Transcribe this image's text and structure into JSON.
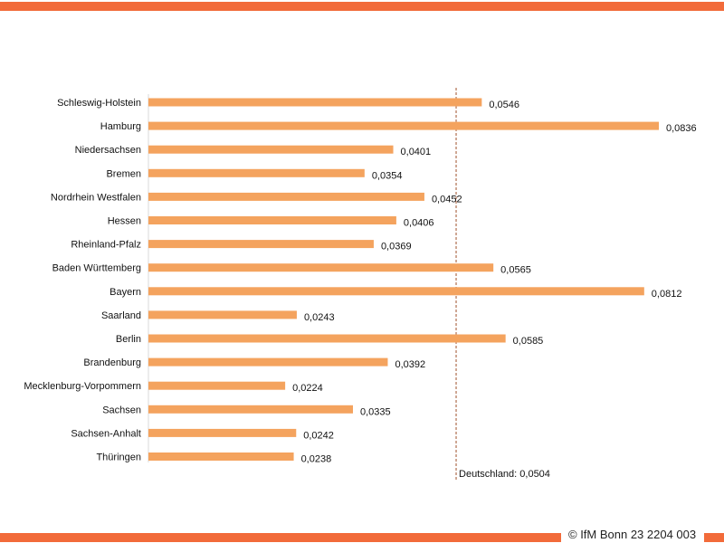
{
  "chart_data": {
    "type": "bar",
    "orientation": "horizontal",
    "categories": [
      "Schleswig-Holstein",
      "Hamburg",
      "Niedersachsen",
      "Bremen",
      "Nordrhein Westfalen",
      "Hessen",
      "Rheinland-Pfalz",
      "Baden Württemberg",
      "Bayern",
      "Saarland",
      "Berlin",
      "Brandenburg",
      "Mecklenburg-Vorpommern",
      "Sachsen",
      "Sachsen-Anhalt",
      "Thüringen"
    ],
    "values": [
      0.0546,
      0.0836,
      0.0401,
      0.0354,
      0.0452,
      0.0406,
      0.0369,
      0.0565,
      0.0812,
      0.0243,
      0.0585,
      0.0392,
      0.0224,
      0.0335,
      0.0242,
      0.0238
    ],
    "value_labels": [
      "0,0546",
      "0,0836",
      "0,0401",
      "0,0354",
      "0,0452",
      "0,0406",
      "0,0369",
      "0,0565",
      "0,0812",
      "0,0243",
      "0,0585",
      "0,0392",
      "0,0224",
      "0,0335",
      "0,0242",
      "0,0238"
    ],
    "reference_line": {
      "value": 0.0504,
      "label": "Deutschland:  0,0504"
    },
    "xlim": [
      0,
      0.0836
    ],
    "bar_color": "#f4a35e",
    "reference_line_color": "#a0522d",
    "grid": false,
    "title": "",
    "xlabel": "",
    "ylabel": ""
  },
  "footer": {
    "copyright": "© IfM Bonn 23 2204 003"
  },
  "colors": {
    "rule": "#f26b3a"
  }
}
